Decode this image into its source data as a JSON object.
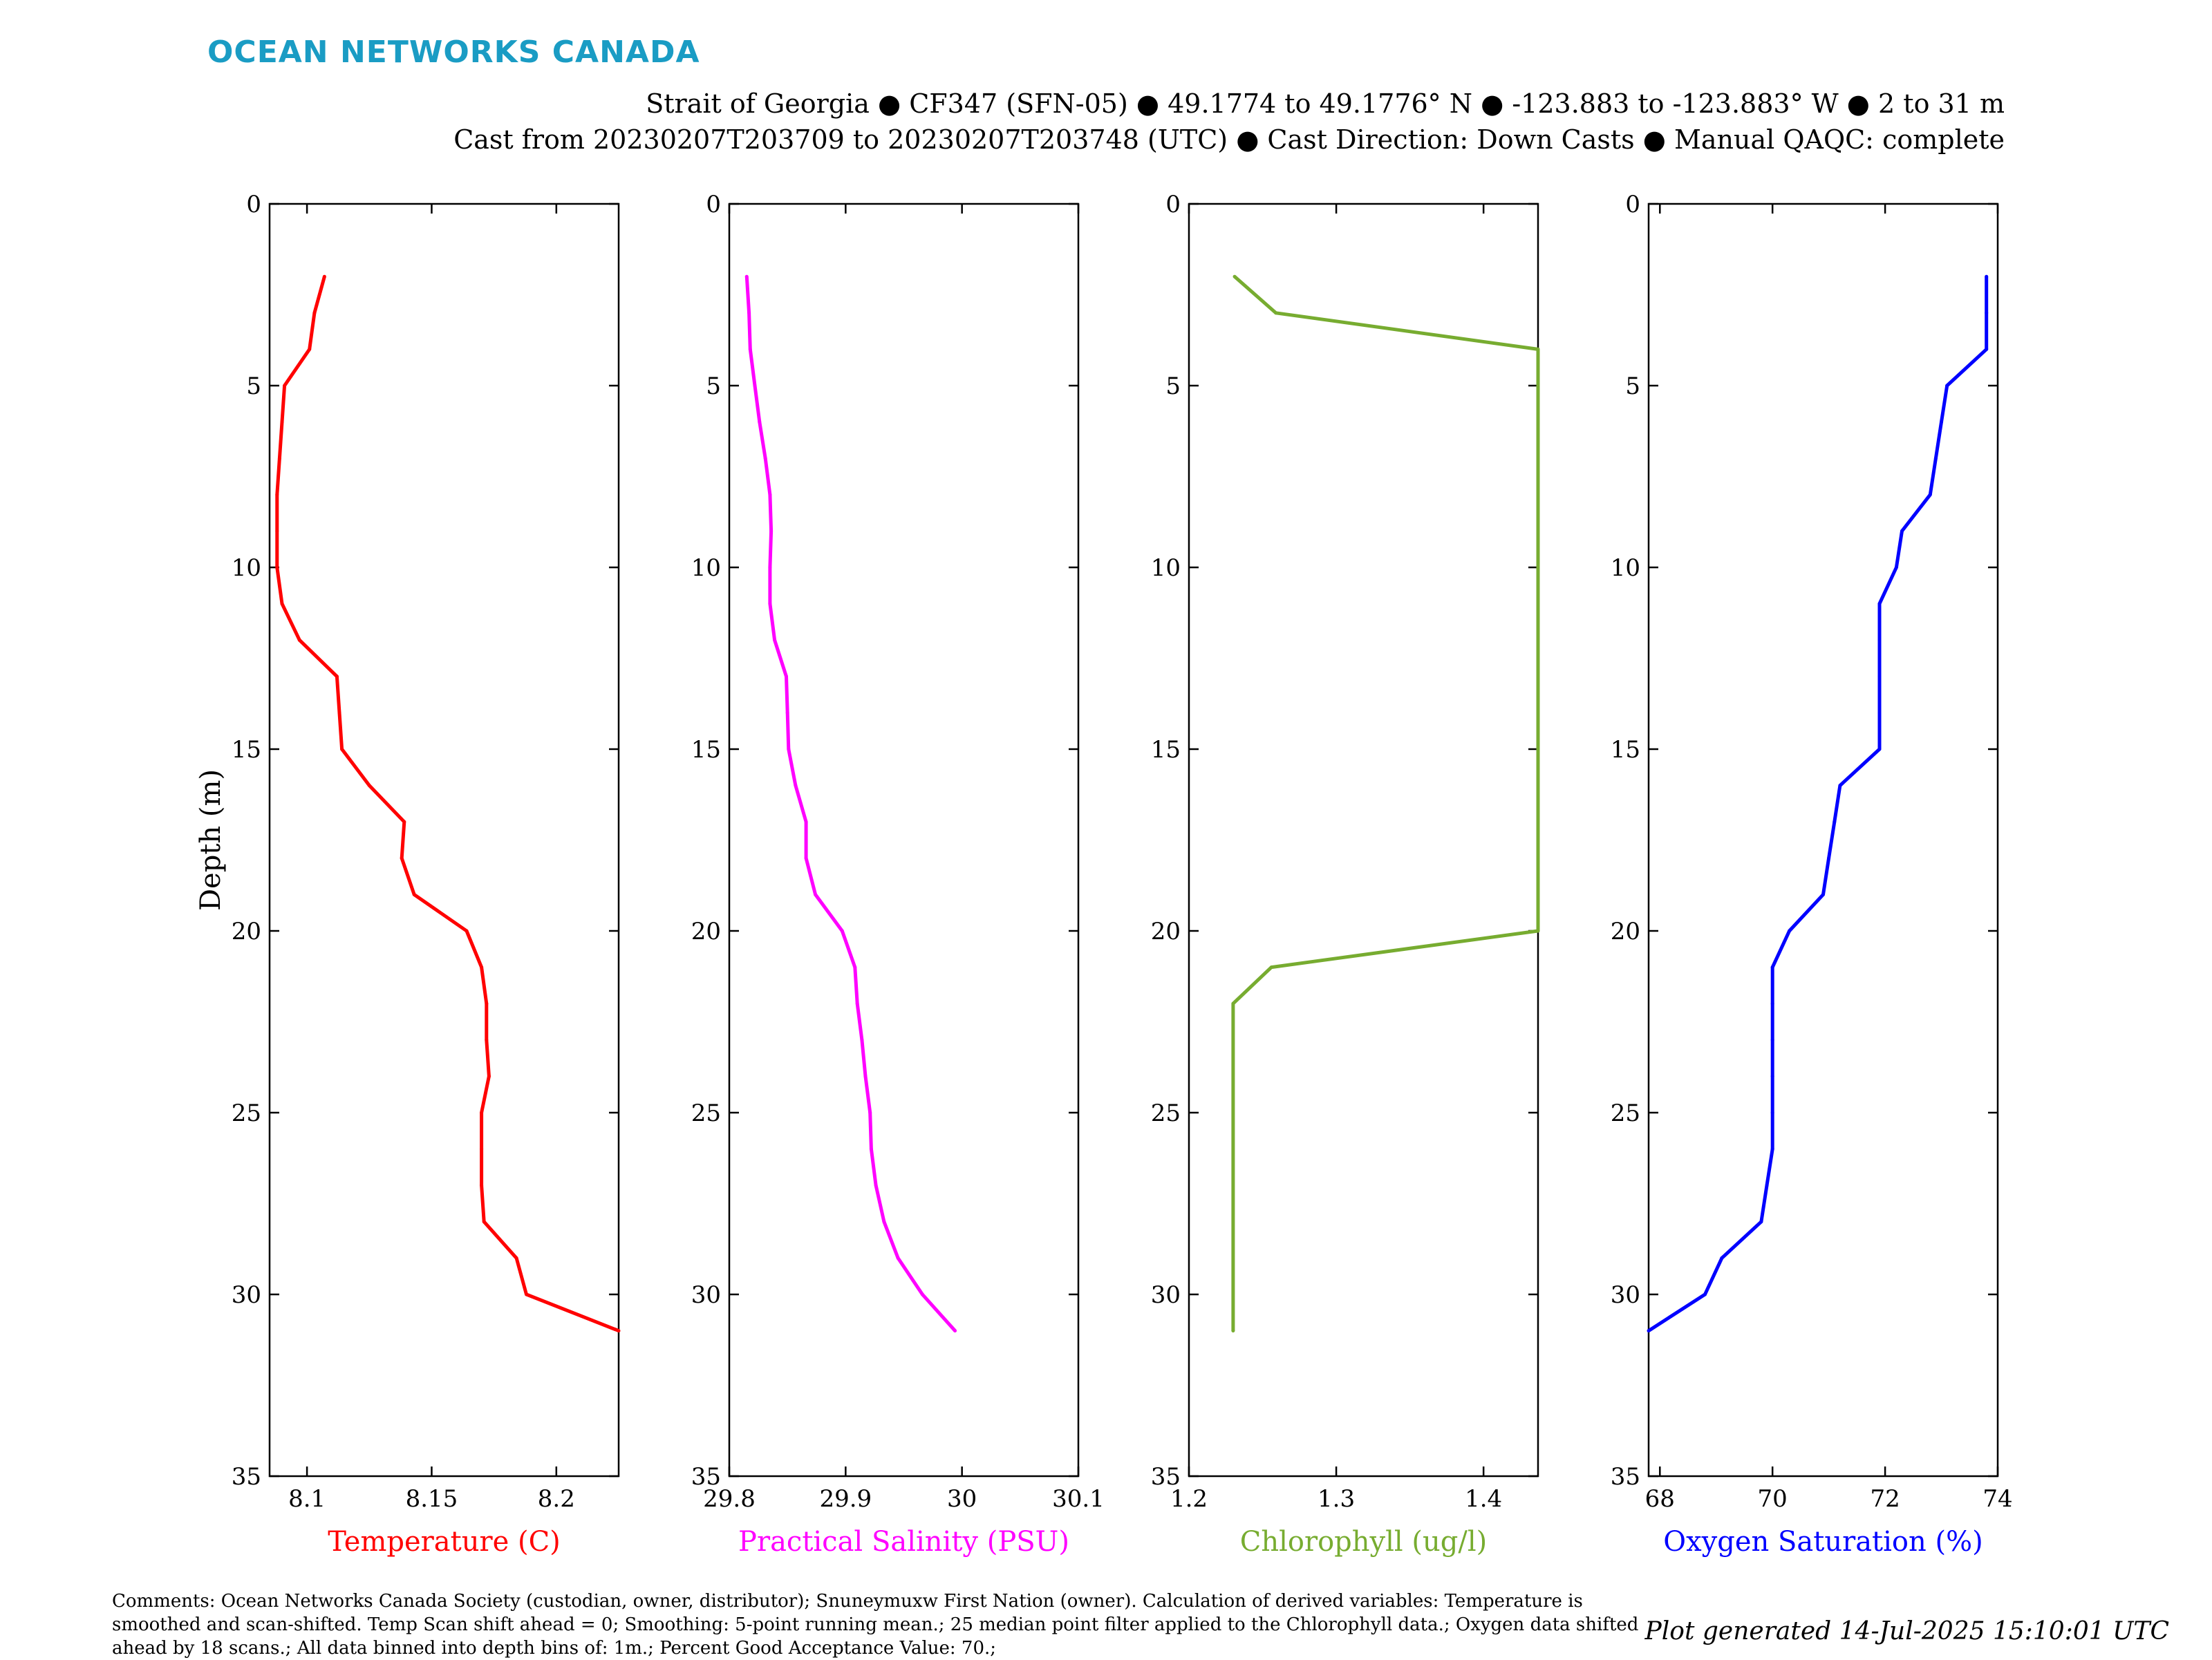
{
  "brand": "OCEAN NETWORKS CANADA",
  "header": {
    "line1": "Strait of Georgia ● CF347 (SFN-05) ● 49.1774 to 49.1776° N ● -123.883 to -123.883° W ● 2 to 31 m",
    "line2": "Cast from 20230207T203709 to 20230207T203748 (UTC) ● Cast Direction: Down Casts ● Manual QAQC: complete"
  },
  "footer": {
    "comments": "Comments: Ocean Networks Canada Society (custodian, owner, distributor); Snuneymuxw First Nation (owner). Calculation of derived variables: Temperature is smoothed and scan-shifted. Temp Scan shift ahead = 0; Smoothing: 5-point running mean.; 25 median point filter applied to the Chlorophyll data.; Oxygen data shifted ahead by 18 scans.; All data binned into depth bins of: 1m.; Percent Good Acceptance Value: 70.;",
    "generated": "Plot generated 14-Jul-2025 15:10:01 UTC"
  },
  "chart_data": [
    {
      "type": "line",
      "ylabel": "Depth (m)",
      "xlabel": "Temperature (C)",
      "color": "#ff0000",
      "xlim": [
        8.085,
        8.225
      ],
      "xticks": [
        8.1,
        8.15,
        8.2
      ],
      "xtick_labels": [
        "8.1",
        "8.15",
        "8.2"
      ],
      "ylim": [
        0,
        35
      ],
      "yticks": [
        0,
        5,
        10,
        15,
        20,
        25,
        30,
        35
      ],
      "depth": [
        2,
        3,
        4,
        5,
        6,
        7,
        8,
        9,
        10,
        11,
        12,
        13,
        14,
        15,
        16,
        17,
        18,
        19,
        20,
        21,
        22,
        23,
        24,
        25,
        26,
        27,
        28,
        29,
        30,
        31
      ],
      "values": [
        8.107,
        8.103,
        8.101,
        8.091,
        8.09,
        8.089,
        8.088,
        8.088,
        8.088,
        8.09,
        8.097,
        8.112,
        8.113,
        8.114,
        8.125,
        8.139,
        8.138,
        8.143,
        8.164,
        8.17,
        8.172,
        8.172,
        8.173,
        8.17,
        8.17,
        8.17,
        8.171,
        8.184,
        8.188,
        8.225
      ]
    },
    {
      "type": "line",
      "xlabel": "Practical Salinity (PSU)",
      "color": "#ff00ff",
      "xlim": [
        29.8,
        30.1
      ],
      "xticks": [
        29.8,
        29.9,
        30,
        30.1
      ],
      "xtick_labels": [
        "29.8",
        "29.9",
        "30",
        "30.1"
      ],
      "ylim": [
        0,
        35
      ],
      "yticks": [
        0,
        5,
        10,
        15,
        20,
        25,
        30,
        35
      ],
      "depth": [
        2,
        3,
        4,
        5,
        6,
        7,
        8,
        9,
        10,
        11,
        12,
        13,
        14,
        15,
        16,
        17,
        18,
        19,
        20,
        21,
        22,
        23,
        24,
        25,
        26,
        27,
        28,
        29,
        30,
        31
      ],
      "values": [
        29.815,
        29.817,
        29.818,
        29.822,
        29.826,
        29.831,
        29.835,
        29.836,
        29.835,
        29.835,
        29.839,
        29.849,
        29.85,
        29.851,
        29.857,
        29.866,
        29.866,
        29.874,
        29.897,
        29.908,
        29.91,
        29.914,
        29.917,
        29.921,
        29.922,
        29.926,
        29.933,
        29.945,
        29.966,
        29.994
      ]
    },
    {
      "type": "line",
      "xlabel": "Chlorophyll (ug/l)",
      "color": "#77ac30",
      "xlim": [
        1.2,
        1.437
      ],
      "xticks": [
        1.2,
        1.3,
        1.4
      ],
      "xtick_labels": [
        "1.2",
        "1.3",
        "1.4"
      ],
      "ylim": [
        0,
        35
      ],
      "yticks": [
        0,
        5,
        10,
        15,
        20,
        25,
        30,
        35
      ],
      "depth": [
        2,
        3,
        4,
        20,
        21,
        22,
        31
      ],
      "values": [
        1.231,
        1.259,
        1.437,
        1.437,
        1.256,
        1.23,
        1.23
      ]
    },
    {
      "type": "line",
      "xlabel": "Oxygen Saturation (%)",
      "color": "#0000ff",
      "xlim": [
        67.8,
        74
      ],
      "xticks": [
        68,
        70,
        72,
        74
      ],
      "xtick_labels": [
        "68",
        "70",
        "72",
        "74"
      ],
      "ylim": [
        0,
        35
      ],
      "yticks": [
        0,
        5,
        10,
        15,
        20,
        25,
        30,
        35
      ],
      "depth": [
        2,
        3,
        4,
        5,
        6,
        7,
        8,
        9,
        10,
        11,
        12,
        13,
        14,
        15,
        16,
        17,
        18,
        19,
        20,
        21,
        22,
        23,
        24,
        25,
        26,
        27,
        28,
        29,
        30,
        31
      ],
      "values": [
        73.8,
        73.8,
        73.8,
        73.1,
        73.0,
        72.9,
        72.8,
        72.3,
        72.2,
        71.9,
        71.9,
        71.9,
        71.9,
        71.9,
        71.2,
        71.1,
        71.0,
        70.9,
        70.3,
        70.0,
        70.0,
        70.0,
        70.0,
        70.0,
        70.0,
        69.9,
        69.8,
        69.1,
        68.8,
        67.8
      ]
    }
  ]
}
